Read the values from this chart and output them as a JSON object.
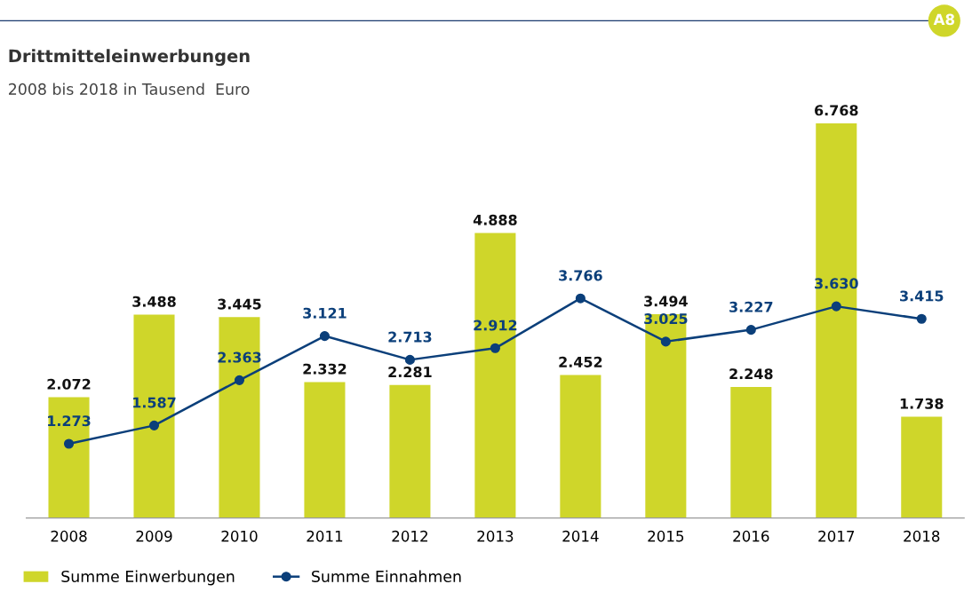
{
  "chart_data": {
    "type": "bar",
    "title": "Drittmitteleinwerbungen",
    "subtitle": "2008 bis 2018 in Tausend  Euro",
    "annotations": [
      "A8"
    ],
    "categories": [
      "2008",
      "2009",
      "2010",
      "2011",
      "2012",
      "2013",
      "2014",
      "2015",
      "2016",
      "2017",
      "2018"
    ],
    "series": [
      {
        "name": "Summe Einwerbungen",
        "color": "#cfd62a",
        "values": [
          2072,
          3488,
          3445,
          2332,
          2281,
          4888,
          2452,
          3494,
          2248,
          6768,
          1738
        ],
        "value_labels": [
          "2.072",
          "3.488",
          "3.445",
          "2.332",
          "2.281",
          "4.888",
          "2.452",
          "3.494",
          "2.248",
          "6.768",
          "1.738"
        ]
      },
      {
        "name": "Summe Einnahmen",
        "type": "line",
        "color": "#0b3f7a",
        "marker": "circle",
        "line_style": "solid",
        "values": [
          1273,
          1587,
          2363,
          3121,
          2713,
          2912,
          3766,
          3025,
          3227,
          3630,
          3415
        ],
        "value_labels": [
          "1.273",
          "1.587",
          "2.363",
          "3.121",
          "2.713",
          "2.912",
          "3.766",
          "3.025",
          "3.227",
          "3.630",
          "3.415"
        ]
      }
    ],
    "grid": false,
    "legend": "bottom left",
    "tick_labels": "x"
  }
}
